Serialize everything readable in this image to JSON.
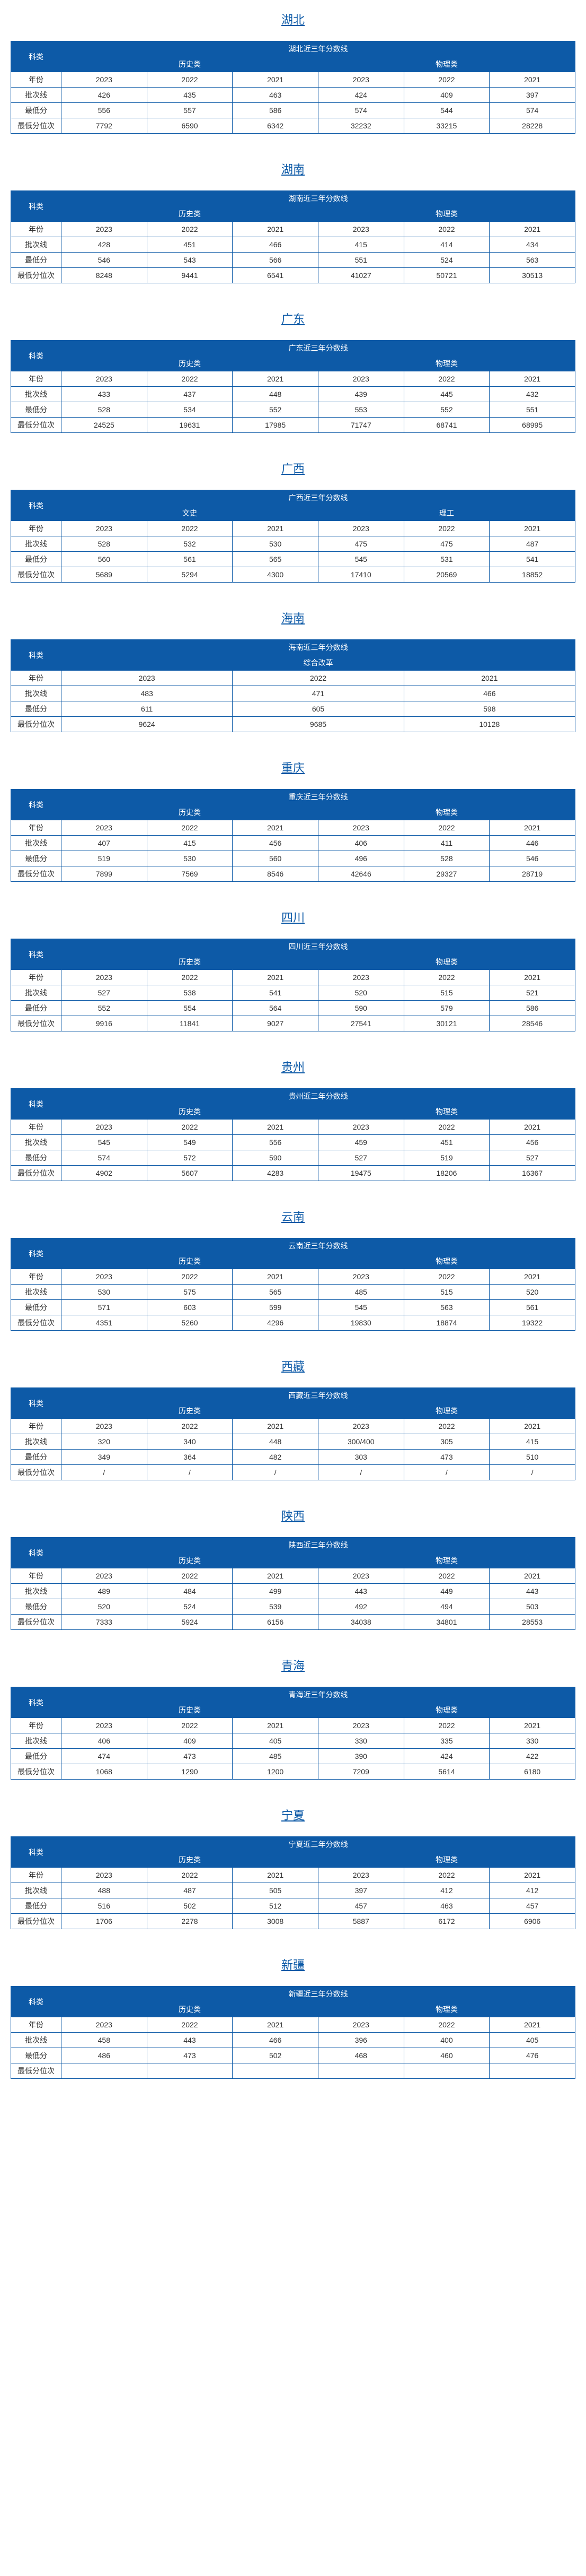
{
  "provinces": [
    {
      "name": "湖北",
      "title": "湖北近三年分数线",
      "categories": [
        "历史类",
        "物理类"
      ],
      "rows": [
        {
          "label": "年份",
          "data": [
            "2023",
            "2022",
            "2021",
            "2023",
            "2022",
            "2021"
          ]
        },
        {
          "label": "批次线",
          "data": [
            "426",
            "435",
            "463",
            "424",
            "409",
            "397"
          ]
        },
        {
          "label": "最低分",
          "data": [
            "556",
            "557",
            "586",
            "574",
            "544",
            "574"
          ]
        },
        {
          "label": "最低分位次",
          "data": [
            "7792",
            "6590",
            "6342",
            "32232",
            "33215",
            "28228"
          ]
        }
      ]
    },
    {
      "name": "湖南",
      "title": "湖南近三年分数线",
      "categories": [
        "历史类",
        "物理类"
      ],
      "rows": [
        {
          "label": "年份",
          "data": [
            "2023",
            "2022",
            "2021",
            "2023",
            "2022",
            "2021"
          ]
        },
        {
          "label": "批次线",
          "data": [
            "428",
            "451",
            "466",
            "415",
            "414",
            "434"
          ]
        },
        {
          "label": "最低分",
          "data": [
            "546",
            "543",
            "566",
            "551",
            "524",
            "563"
          ]
        },
        {
          "label": "最低分位次",
          "data": [
            "8248",
            "9441",
            "6541",
            "41027",
            "50721",
            "30513"
          ]
        }
      ]
    },
    {
      "name": "广东",
      "title": "广东近三年分数线",
      "categories": [
        "历史类",
        "物理类"
      ],
      "rows": [
        {
          "label": "年份",
          "data": [
            "2023",
            "2022",
            "2021",
            "2023",
            "2022",
            "2021"
          ]
        },
        {
          "label": "批次线",
          "data": [
            "433",
            "437",
            "448",
            "439",
            "445",
            "432"
          ]
        },
        {
          "label": "最低分",
          "data": [
            "528",
            "534",
            "552",
            "553",
            "552",
            "551"
          ]
        },
        {
          "label": "最低分位次",
          "data": [
            "24525",
            "19631",
            "17985",
            "71747",
            "68741",
            "68995"
          ]
        }
      ]
    },
    {
      "name": "广西",
      "title": "广西近三年分数线",
      "categories": [
        "文史",
        "理工"
      ],
      "rows": [
        {
          "label": "年份",
          "data": [
            "2023",
            "2022",
            "2021",
            "2023",
            "2022",
            "2021"
          ]
        },
        {
          "label": "批次线",
          "data": [
            "528",
            "532",
            "530",
            "475",
            "475",
            "487"
          ]
        },
        {
          "label": "最低分",
          "data": [
            "560",
            "561",
            "565",
            "545",
            "531",
            "541"
          ]
        },
        {
          "label": "最低分位次",
          "data": [
            "5689",
            "5294",
            "4300",
            "17410",
            "20569",
            "18852"
          ]
        }
      ]
    },
    {
      "name": "海南",
      "title": "海南近三年分数线",
      "categories": [
        "综合改革"
      ],
      "span": 3,
      "rows": [
        {
          "label": "年份",
          "data": [
            "2023",
            "2022",
            "2021"
          ]
        },
        {
          "label": "批次线",
          "data": [
            "483",
            "471",
            "466"
          ]
        },
        {
          "label": "最低分",
          "data": [
            "611",
            "605",
            "598"
          ]
        },
        {
          "label": "最低分位次",
          "data": [
            "9624",
            "9685",
            "10128"
          ]
        }
      ]
    },
    {
      "name": "重庆",
      "title": "重庆近三年分数线",
      "categories": [
        "历史类",
        "物理类"
      ],
      "rows": [
        {
          "label": "年份",
          "data": [
            "2023",
            "2022",
            "2021",
            "2023",
            "2022",
            "2021"
          ]
        },
        {
          "label": "批次线",
          "data": [
            "407",
            "415",
            "456",
            "406",
            "411",
            "446"
          ]
        },
        {
          "label": "最低分",
          "data": [
            "519",
            "530",
            "560",
            "496",
            "528",
            "546"
          ]
        },
        {
          "label": "最低分位次",
          "data": [
            "7899",
            "7569",
            "8546",
            "42646",
            "29327",
            "28719"
          ]
        }
      ]
    },
    {
      "name": "四川",
      "title": "四川近三年分数线",
      "categories": [
        "历史类",
        "物理类"
      ],
      "rows": [
        {
          "label": "年份",
          "data": [
            "2023",
            "2022",
            "2021",
            "2023",
            "2022",
            "2021"
          ]
        },
        {
          "label": "批次线",
          "data": [
            "527",
            "538",
            "541",
            "520",
            "515",
            "521"
          ]
        },
        {
          "label": "最低分",
          "data": [
            "552",
            "554",
            "564",
            "590",
            "579",
            "586"
          ]
        },
        {
          "label": "最低分位次",
          "data": [
            "9916",
            "11841",
            "9027",
            "27541",
            "30121",
            "28546"
          ]
        }
      ]
    },
    {
      "name": "贵州",
      "title": "贵州近三年分数线",
      "categories": [
        "历史类",
        "物理类"
      ],
      "rows": [
        {
          "label": "年份",
          "data": [
            "2023",
            "2022",
            "2021",
            "2023",
            "2022",
            "2021"
          ]
        },
        {
          "label": "批次线",
          "data": [
            "545",
            "549",
            "556",
            "459",
            "451",
            "456"
          ]
        },
        {
          "label": "最低分",
          "data": [
            "574",
            "572",
            "590",
            "527",
            "519",
            "527"
          ]
        },
        {
          "label": "最低分位次",
          "data": [
            "4902",
            "5607",
            "4283",
            "19475",
            "18206",
            "16367"
          ]
        }
      ]
    },
    {
      "name": "云南",
      "title": "云南近三年分数线",
      "categories": [
        "历史类",
        "物理类"
      ],
      "rows": [
        {
          "label": "年份",
          "data": [
            "2023",
            "2022",
            "2021",
            "2023",
            "2022",
            "2021"
          ]
        },
        {
          "label": "批次线",
          "data": [
            "530",
            "575",
            "565",
            "485",
            "515",
            "520"
          ]
        },
        {
          "label": "最低分",
          "data": [
            "571",
            "603",
            "599",
            "545",
            "563",
            "561"
          ]
        },
        {
          "label": "最低分位次",
          "data": [
            "4351",
            "5260",
            "4296",
            "19830",
            "18874",
            "19322"
          ]
        }
      ]
    },
    {
      "name": "西藏",
      "title": "西藏近三年分数线",
      "categories": [
        "历史类",
        "物理类"
      ],
      "rows": [
        {
          "label": "年份",
          "data": [
            "2023",
            "2022",
            "2021",
            "2023",
            "2022",
            "2021"
          ]
        },
        {
          "label": "批次线",
          "data": [
            "320",
            "340",
            "448",
            "300/400",
            "305",
            "415"
          ]
        },
        {
          "label": "最低分",
          "data": [
            "349",
            "364",
            "482",
            "303",
            "473",
            "510"
          ]
        },
        {
          "label": "最低分位次",
          "data": [
            "/",
            "/",
            "/",
            "/",
            "/",
            "/"
          ]
        }
      ]
    },
    {
      "name": "陕西",
      "title": "陕西近三年分数线",
      "categories": [
        "历史类",
        "物理类"
      ],
      "rows": [
        {
          "label": "年份",
          "data": [
            "2023",
            "2022",
            "2021",
            "2023",
            "2022",
            "2021"
          ]
        },
        {
          "label": "批次线",
          "data": [
            "489",
            "484",
            "499",
            "443",
            "449",
            "443"
          ]
        },
        {
          "label": "最低分",
          "data": [
            "520",
            "524",
            "539",
            "492",
            "494",
            "503"
          ]
        },
        {
          "label": "最低分位次",
          "data": [
            "7333",
            "5924",
            "6156",
            "34038",
            "34801",
            "28553"
          ]
        }
      ]
    },
    {
      "name": "青海",
      "title": "青海近三年分数线",
      "categories": [
        "历史类",
        "物理类"
      ],
      "rows": [
        {
          "label": "年份",
          "data": [
            "2023",
            "2022",
            "2021",
            "2023",
            "2022",
            "2021"
          ]
        },
        {
          "label": "批次线",
          "data": [
            "406",
            "409",
            "405",
            "330",
            "335",
            "330"
          ]
        },
        {
          "label": "最低分",
          "data": [
            "474",
            "473",
            "485",
            "390",
            "424",
            "422"
          ]
        },
        {
          "label": "最低分位次",
          "data": [
            "1068",
            "1290",
            "1200",
            "7209",
            "5614",
            "6180"
          ]
        }
      ]
    },
    {
      "name": "宁夏",
      "title": "宁夏近三年分数线",
      "categories": [
        "历史类",
        "物理类"
      ],
      "rows": [
        {
          "label": "年份",
          "data": [
            "2023",
            "2022",
            "2021",
            "2023",
            "2022",
            "2021"
          ]
        },
        {
          "label": "批次线",
          "data": [
            "488",
            "487",
            "505",
            "397",
            "412",
            "412"
          ]
        },
        {
          "label": "最低分",
          "data": [
            "516",
            "502",
            "512",
            "457",
            "463",
            "457"
          ]
        },
        {
          "label": "最低分位次",
          "data": [
            "1706",
            "2278",
            "3008",
            "5887",
            "6172",
            "6906"
          ]
        }
      ]
    },
    {
      "name": "新疆",
      "title": "新疆近三年分数线",
      "categories": [
        "历史类",
        "物理类"
      ],
      "rows": [
        {
          "label": "年份",
          "data": [
            "2023",
            "2022",
            "2021",
            "2023",
            "2022",
            "2021"
          ]
        },
        {
          "label": "批次线",
          "data": [
            "458",
            "443",
            "466",
            "396",
            "400",
            "405"
          ]
        },
        {
          "label": "最低分",
          "data": [
            "486",
            "473",
            "502",
            "468",
            "460",
            "476"
          ]
        },
        {
          "label": "最低分位次",
          "data": [
            "",
            "",
            "",
            "",
            "",
            ""
          ]
        }
      ]
    }
  ]
}
